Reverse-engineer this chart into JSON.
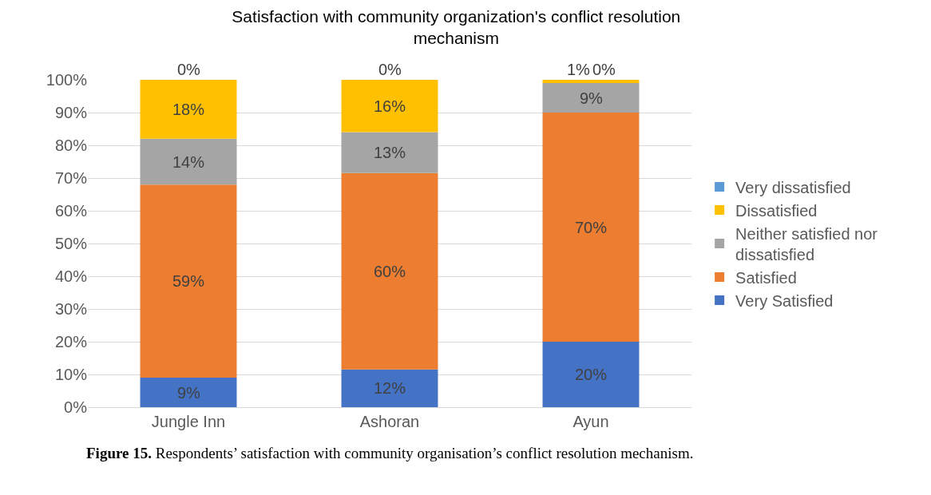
{
  "chart_data": {
    "type": "bar",
    "stacked": true,
    "title": "Satisfaction with community organization's conflict resolution mechanism",
    "categories": [
      "Jungle Inn",
      "Ashoran",
      "Ayun"
    ],
    "series": [
      {
        "name": "Very Satisfied",
        "color": "#4472c4",
        "values": [
          9,
          11.5,
          20
        ],
        "value_labels": [
          "9%",
          "12%",
          "20%"
        ]
      },
      {
        "name": "Satisfied",
        "color": "#ed7d31",
        "values": [
          59,
          60,
          70
        ],
        "value_labels": [
          "59%",
          "60%",
          "70%"
        ]
      },
      {
        "name": "Neither satisfied nor dissatisfied",
        "color": "#a5a5a5",
        "values": [
          14,
          12.5,
          9
        ],
        "value_labels": [
          "14%",
          "13%",
          "9%"
        ]
      },
      {
        "name": "Dissatisfied",
        "color": "#ffc000",
        "values": [
          18,
          16,
          1
        ],
        "value_labels": [
          "18%",
          "16%",
          "1%"
        ]
      },
      {
        "name": "Very dissatisfied",
        "color": "#5b9bd5",
        "values": [
          0,
          0,
          0
        ],
        "value_labels": [
          "0%",
          "0%",
          "0%"
        ]
      }
    ],
    "ylim": [
      0,
      100
    ],
    "yticks": [
      {
        "value": 0,
        "label": "0%"
      },
      {
        "value": 10,
        "label": "10%"
      },
      {
        "value": 20,
        "label": "20%"
      },
      {
        "value": 30,
        "label": "30%"
      },
      {
        "value": 40,
        "label": "40%"
      },
      {
        "value": 50,
        "label": "50%"
      },
      {
        "value": 60,
        "label": "60%"
      },
      {
        "value": 70,
        "label": "70%"
      },
      {
        "value": 80,
        "label": "80%"
      },
      {
        "value": 90,
        "label": "90%"
      },
      {
        "value": 100,
        "label": "100%"
      }
    ],
    "grid": "y",
    "legend": "right",
    "annotations": [
      "Figure 15. Respondents’ satisfaction with community organisation’s conflict resolution mechanism."
    ]
  }
}
